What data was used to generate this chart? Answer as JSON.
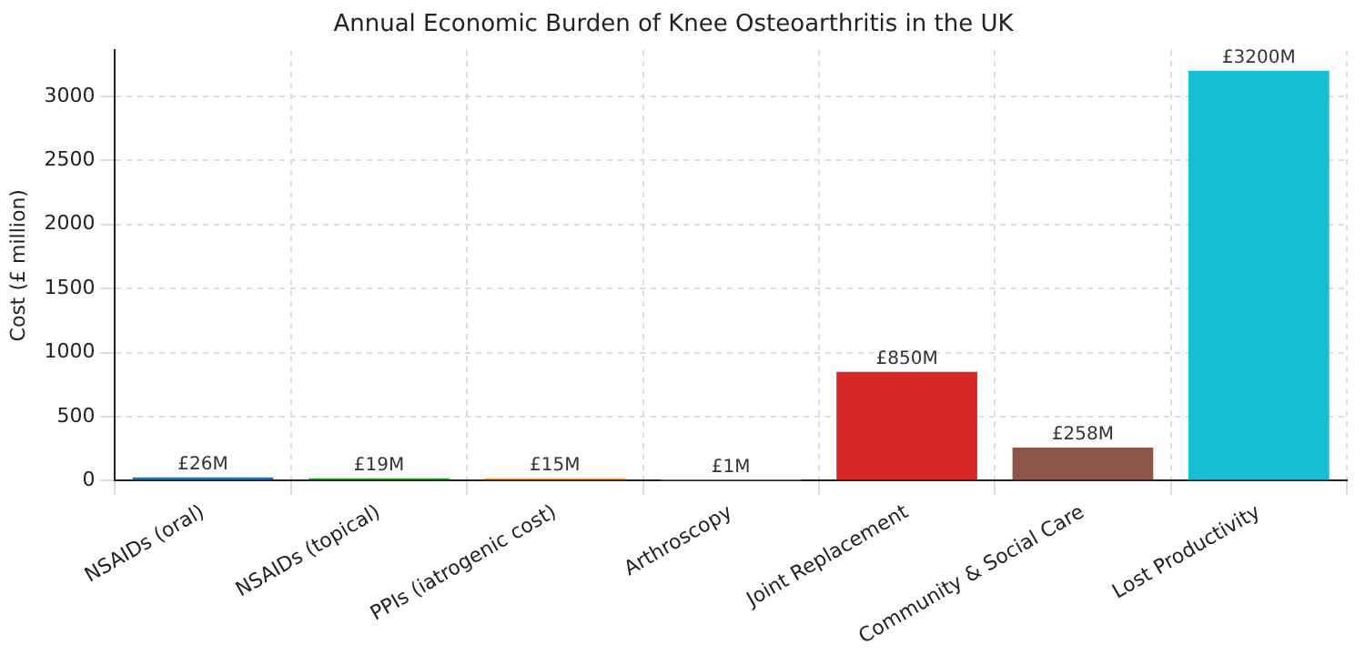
{
  "chart_data": {
    "type": "bar",
    "title": "Annual Economic Burden of Knee Osteoarthritis in the UK",
    "ylabel": "Cost (£ million)",
    "categories": [
      "NSAIDs (oral)",
      "NSAIDs (topical)",
      "PPIs (iatrogenic cost)",
      "Arthroscopy",
      "Joint Replacement",
      "Community & Social Care",
      "Lost Productivity"
    ],
    "values": [
      26,
      19,
      15,
      1,
      850,
      258,
      3200
    ],
    "colors": [
      "#1f77b4",
      "#2ca02c",
      "#ff7f0e",
      "#9467bd",
      "#d62728",
      "#8c564b",
      "#17becf"
    ],
    "value_labels": [
      "£26M",
      "£19M",
      "£15M",
      "£1M",
      "£850M",
      "£258M",
      "£3200M"
    ],
    "ylim": [
      0,
      3360
    ],
    "yticks": [
      0,
      500,
      1000,
      1500,
      2000,
      2500,
      3000
    ],
    "grid": true
  }
}
